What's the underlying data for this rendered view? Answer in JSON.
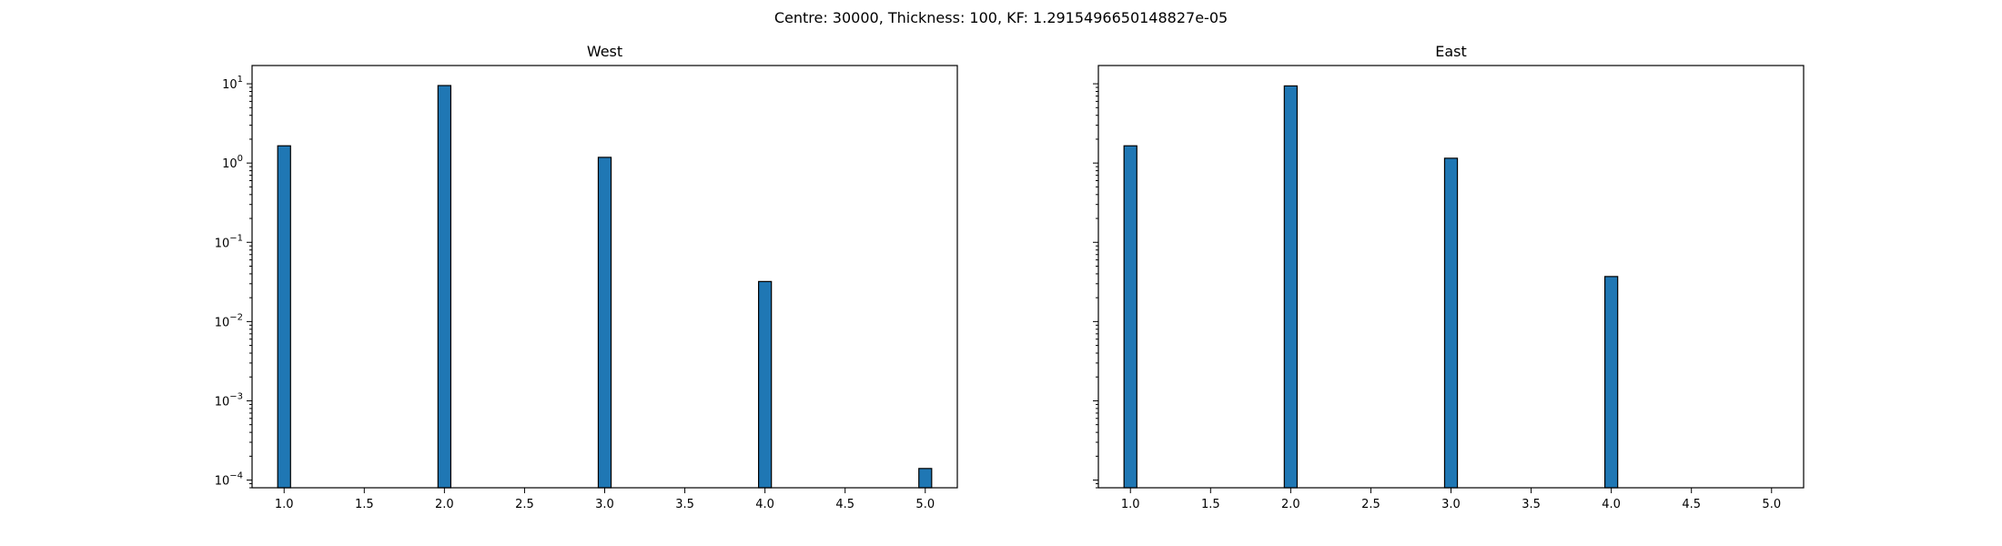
{
  "figure": {
    "suptitle": "Centre: 30000, Thickness: 100, KF: 1.2915496650148827e-05"
  },
  "chart_data": [
    {
      "type": "bar",
      "title": "West",
      "yscale": "log",
      "xlim": [
        0.8,
        5.2
      ],
      "ylim": [
        8e-05,
        17
      ],
      "xticks": [
        1.0,
        1.5,
        2.0,
        2.5,
        3.0,
        3.5,
        4.0,
        4.5,
        5.0
      ],
      "xtick_labels": [
        "1.0",
        "1.5",
        "2.0",
        "2.5",
        "3.0",
        "3.5",
        "4.0",
        "4.5",
        "5.0"
      ],
      "ytick_exponents": [
        -4,
        -3,
        -2,
        -1,
        0,
        1
      ],
      "show_ytick_labels": true,
      "bar_width": 0.08,
      "bar_color": "#1f77b4",
      "x": [
        1.0,
        2.0,
        3.0,
        4.0,
        5.0
      ],
      "values": [
        1.65,
        9.5,
        1.18,
        0.032,
        0.00014
      ]
    },
    {
      "type": "bar",
      "title": "East",
      "yscale": "log",
      "xlim": [
        0.8,
        5.2
      ],
      "ylim": [
        8e-05,
        17
      ],
      "xticks": [
        1.0,
        1.5,
        2.0,
        2.5,
        3.0,
        3.5,
        4.0,
        4.5,
        5.0
      ],
      "xtick_labels": [
        "1.0",
        "1.5",
        "2.0",
        "2.5",
        "3.0",
        "3.5",
        "4.0",
        "4.5",
        "5.0"
      ],
      "ytick_exponents": [
        -4,
        -3,
        -2,
        -1,
        0,
        1
      ],
      "show_ytick_labels": false,
      "bar_width": 0.08,
      "bar_color": "#1f77b4",
      "x": [
        1.0,
        2.0,
        3.0,
        4.0
      ],
      "values": [
        1.65,
        9.4,
        1.15,
        0.037
      ]
    }
  ]
}
